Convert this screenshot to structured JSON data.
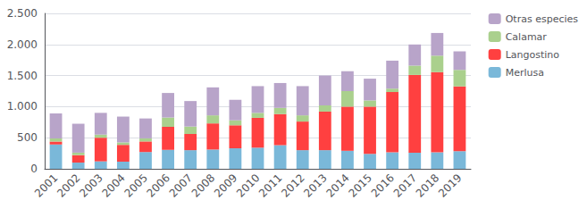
{
  "chart_data": {
    "type": "bar",
    "stacked": true,
    "categories": [
      "2001",
      "2002",
      "2003",
      "2004",
      "2005",
      "2006",
      "2007",
      "2008",
      "2009",
      "2010",
      "2011",
      "2012",
      "2013",
      "2014",
      "2015",
      "2016",
      "2017",
      "2018",
      "2019"
    ],
    "series": [
      {
        "name": "Merlusa",
        "color": "#7ab8d9",
        "values": [
          390,
          100,
          120,
          115,
          270,
          305,
          300,
          310,
          330,
          340,
          380,
          300,
          300,
          290,
          240,
          265,
          260,
          265,
          285
        ]
      },
      {
        "name": "Langostino",
        "color": "#ff4040",
        "values": [
          50,
          120,
          380,
          270,
          170,
          370,
          260,
          420,
          370,
          480,
          500,
          460,
          620,
          710,
          760,
          970,
          1250,
          1290,
          1040
        ]
      },
      {
        "name": "Calamar",
        "color": "#aad08d",
        "values": [
          50,
          40,
          50,
          40,
          50,
          150,
          120,
          130,
          80,
          80,
          100,
          100,
          100,
          250,
          100,
          55,
          150,
          265,
          265
        ]
      },
      {
        "name": "Otras especies",
        "color": "#b8a4c9",
        "values": [
          400,
          465,
          350,
          415,
          320,
          395,
          410,
          450,
          330,
          430,
          400,
          470,
          480,
          320,
          350,
          450,
          340,
          365,
          300
        ]
      }
    ],
    "ylim": [
      0,
      2500
    ],
    "yticks": [
      0,
      500,
      {
        "value": 1000,
        "label": "1.000"
      },
      {
        "value": 1500,
        "label": "1.500"
      },
      {
        "value": 2000,
        "label": "2.000"
      },
      {
        "value": 2500,
        "label": "2.500"
      }
    ],
    "grid": true,
    "legend": "upper right"
  }
}
